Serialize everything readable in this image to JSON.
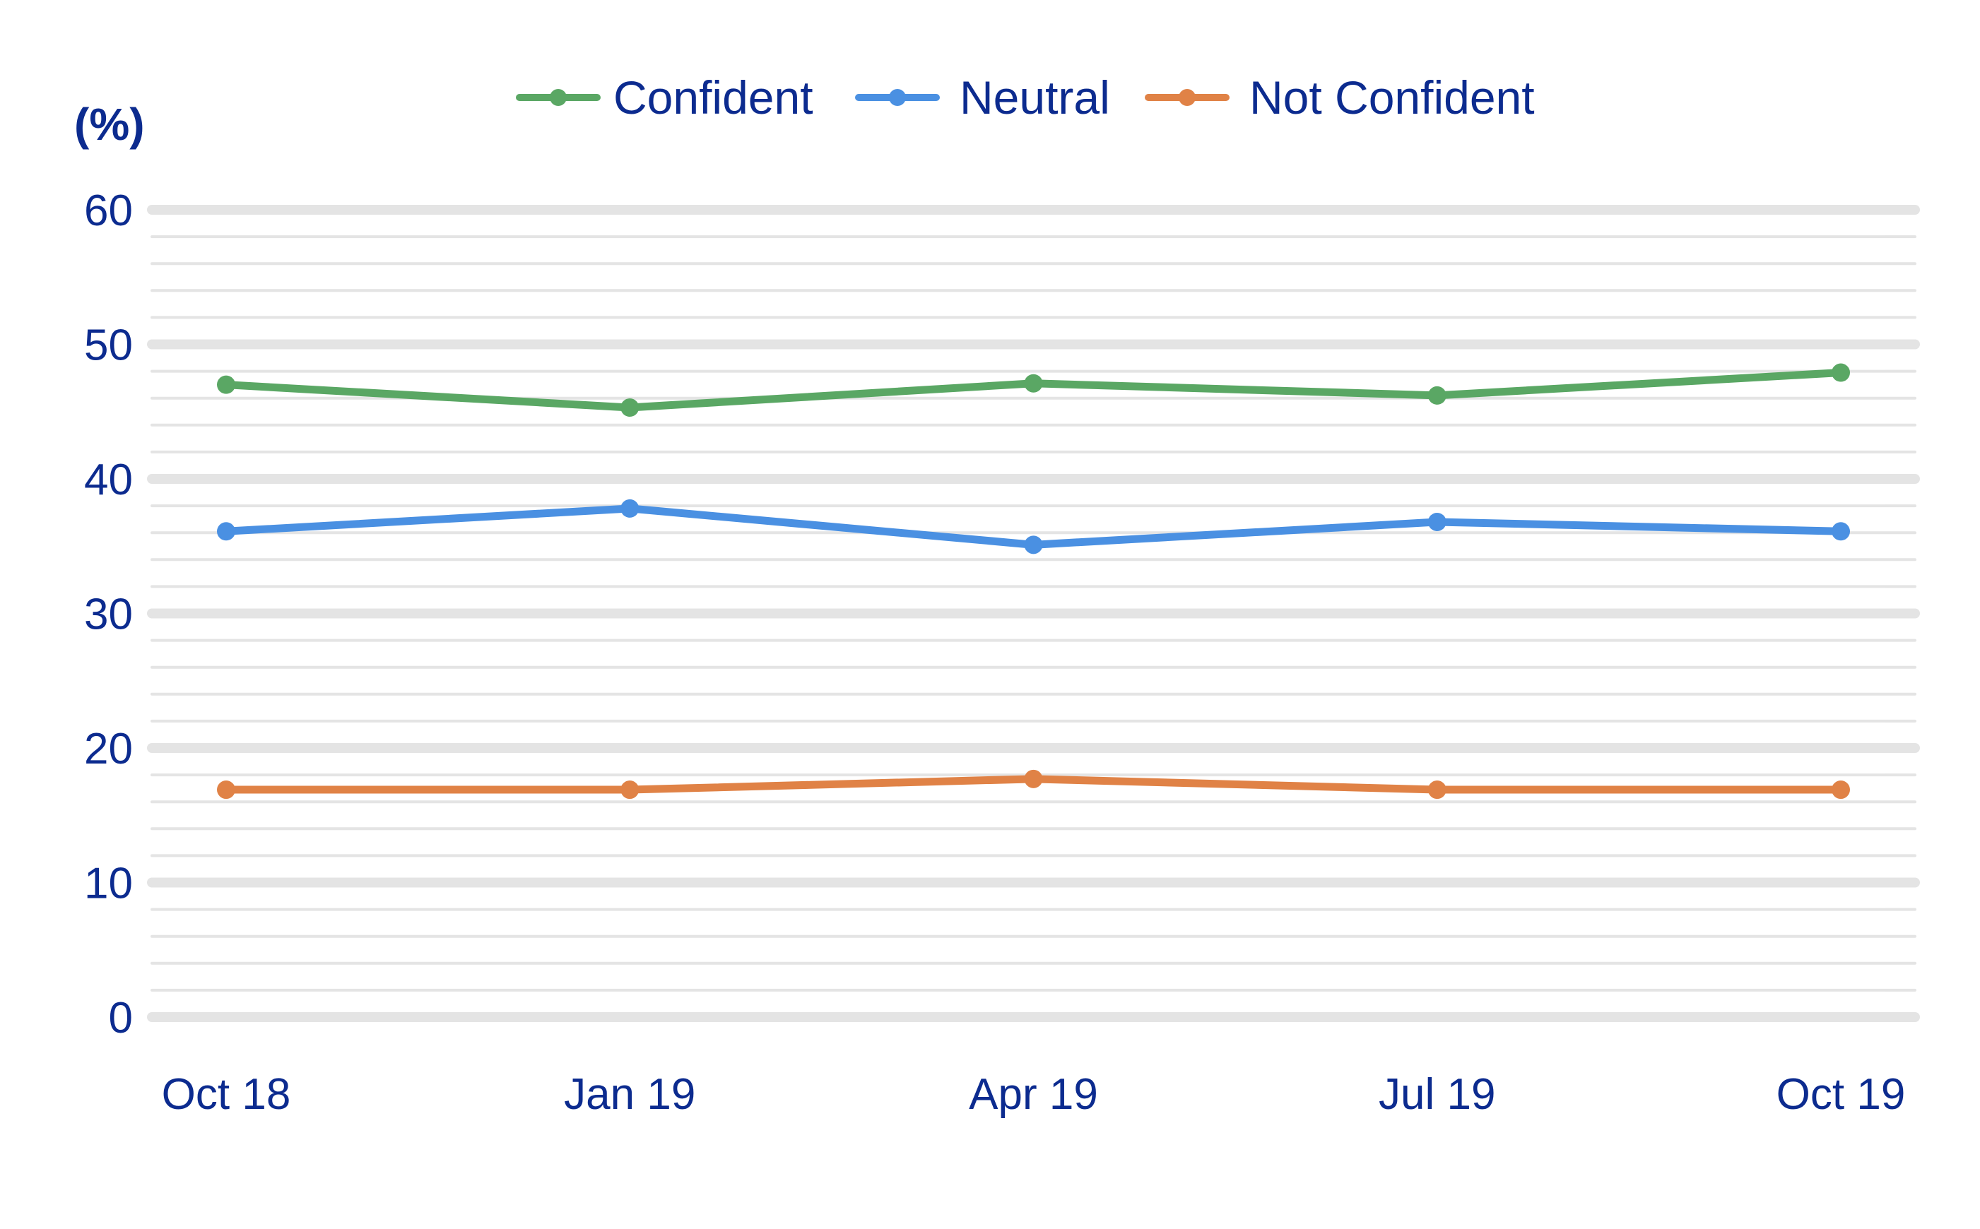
{
  "chart_data": {
    "type": "line",
    "title": "",
    "ylabel": "(%)",
    "xlabel": "",
    "categories": [
      "Oct 18",
      "Jan 19",
      "Apr 19",
      "Jul 19",
      "Oct 19"
    ],
    "ylim": [
      0,
      60
    ],
    "yticks": [
      "0",
      "10",
      "20",
      "30",
      "40",
      "50",
      "60"
    ],
    "grid": true,
    "legend_position": "top-center",
    "series": [
      {
        "name": "Confident",
        "color": "#5aa764",
        "values": [
          47,
          45.3,
          47.1,
          46.2,
          47.9
        ]
      },
      {
        "name": "Neutral",
        "color": "#4a90e2",
        "values": [
          36.1,
          37.8,
          35.1,
          36.8,
          36.1
        ]
      },
      {
        "name": "Not Confident",
        "color": "#e08246",
        "values": [
          16.9,
          16.9,
          17.7,
          16.9,
          16.9
        ]
      }
    ],
    "text_color": "#0c2b8f",
    "grid_color": "#e4e4e4"
  }
}
